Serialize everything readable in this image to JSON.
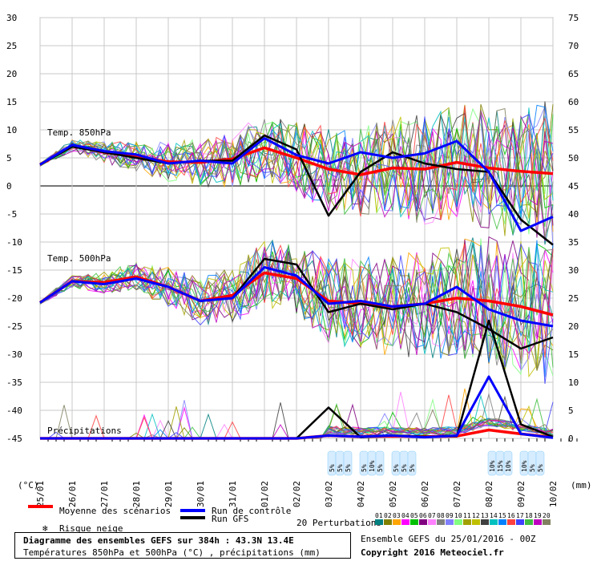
{
  "chart_data": {
    "type": "line",
    "title": "Diagramme des ensembles GEFS sur 384h : 43.3N 13.4E",
    "subtitle": "Températures 850hPa et 500hPa (°C) , précipitations (mm)",
    "run_label": "Ensemble GEFS du 25/01/2016 - 00Z",
    "copyright": "Copyright 2016 Meteociel.fr",
    "x_labels": [
      "25/01",
      "26/01",
      "27/01",
      "28/01",
      "29/01",
      "30/01",
      "31/01",
      "01/02",
      "02/02",
      "03/02",
      "04/02",
      "05/02",
      "06/02",
      "07/02",
      "08/02",
      "09/02",
      "10/02"
    ],
    "left_axis": {
      "label": "(°C)",
      "ticks": [
        30,
        25,
        20,
        15,
        10,
        5,
        0,
        -5,
        -10,
        -15,
        -20,
        -25,
        -30,
        -35,
        -40,
        -45
      ],
      "range": [
        -45,
        30
      ]
    },
    "right_axis": {
      "label": "(mm)",
      "ticks": [
        75,
        70,
        65,
        60,
        55,
        50,
        45,
        40,
        35,
        30,
        25,
        20,
        15,
        10,
        5,
        0
      ],
      "range": [
        0,
        75
      ]
    },
    "section_labels": [
      "Temp. 850hPa",
      "Temp. 500hPa",
      "Précipitations"
    ],
    "t850": {
      "mean": [
        3.8,
        7.2,
        6.0,
        5.2,
        4.3,
        4.2,
        4.8,
        6.8,
        5.0,
        3.0,
        2.0,
        3.2,
        3.0,
        4.2,
        3.2,
        2.6,
        2.2
      ],
      "control": [
        3.8,
        7.3,
        6.2,
        5.6,
        4.0,
        4.5,
        4.0,
        8.5,
        5.5,
        4.0,
        6.0,
        5.0,
        5.8,
        8.0,
        2.5,
        -8.0,
        -5.5
      ],
      "gfs": [
        3.8,
        7.0,
        6.0,
        5.0,
        4.0,
        4.5,
        4.5,
        9.0,
        6.5,
        -5.3,
        2.5,
        6.0,
        4.0,
        3.0,
        2.5,
        -6.0,
        -10.5
      ]
    },
    "t500": {
      "mean": [
        -20.8,
        -17.0,
        -17.2,
        -16.2,
        -18.0,
        -20.5,
        -19.5,
        -15.5,
        -16.5,
        -20.5,
        -21.0,
        -21.5,
        -21.0,
        -20.0,
        -20.5,
        -21.5,
        -23.0
      ],
      "control": [
        -20.8,
        -17.0,
        -17.5,
        -16.5,
        -18.0,
        -20.5,
        -20.0,
        -14.5,
        -16.0,
        -21.0,
        -20.5,
        -21.5,
        -21.0,
        -18.0,
        -22.0,
        -24.0,
        -25.0
      ],
      "gfs": [
        -20.8,
        -17.0,
        -17.5,
        -16.5,
        -18.0,
        -20.5,
        -20.0,
        -13.0,
        -14.0,
        -22.5,
        -21.0,
        -22.0,
        -21.0,
        -22.5,
        -25.5,
        -29.0,
        -27.0
      ]
    },
    "precip": {
      "mean": [
        0,
        0,
        0,
        0,
        0,
        0,
        0,
        0,
        0,
        0.5,
        0.3,
        0.4,
        0.3,
        0.4,
        1.5,
        0.8,
        0.2
      ],
      "control": [
        0,
        0,
        0,
        0,
        0,
        0,
        0,
        0,
        0,
        0.5,
        0.3,
        0.5,
        0.2,
        0.5,
        11.0,
        0.8,
        0.1
      ],
      "gfs": [
        0,
        0,
        0,
        0,
        0,
        0,
        0,
        0,
        0,
        5.5,
        0.2,
        0.5,
        0.3,
        0.4,
        21.0,
        2.5,
        0.3
      ]
    },
    "perturbation_colors": [
      "#008080",
      "#808000",
      "#ffa500",
      "#ff00ff",
      "#00c000",
      "#800080",
      "#ff80ff",
      "#808080",
      "#8080ff",
      "#80ff80",
      "#a0a000",
      "#c0c000",
      "#404040",
      "#00c0c0",
      "#0080ff",
      "#ff4040",
      "#4040ff",
      "#40c040",
      "#c000c0",
      "#808060"
    ],
    "perturbation_numbers": [
      "01",
      "02",
      "03",
      "04",
      "05",
      "06",
      "07",
      "08",
      "09",
      "10",
      "11",
      "12",
      "13",
      "14",
      "15",
      "16",
      "17",
      "18",
      "19",
      "20"
    ],
    "snow_risk_days": [
      {
        "day_index": 9.35,
        "pcts": [
          "5%",
          "5%",
          "5%"
        ]
      },
      {
        "day_index": 10.35,
        "pcts": [
          "5%",
          "10%",
          "5%"
        ]
      },
      {
        "day_index": 11.35,
        "pcts": [
          "5%",
          "5%",
          "5%"
        ]
      },
      {
        "day_index": 14.35,
        "pcts": [
          "10%",
          "15%",
          "10%"
        ]
      },
      {
        "day_index": 15.35,
        "pcts": [
          "10%",
          "5%",
          "5%"
        ]
      }
    ]
  },
  "legend": {
    "mean_label": "Moyenne des scénarios",
    "control_label": "Run de contrôle",
    "gfs_label": "Run GFS",
    "snow_label": "Risque neige",
    "perturbations_label": "20 Perturbations",
    "mean_color": "#ff0000",
    "control_color": "#0000ff",
    "gfs_color": "#000000",
    "snow_color": "#87cefa"
  }
}
